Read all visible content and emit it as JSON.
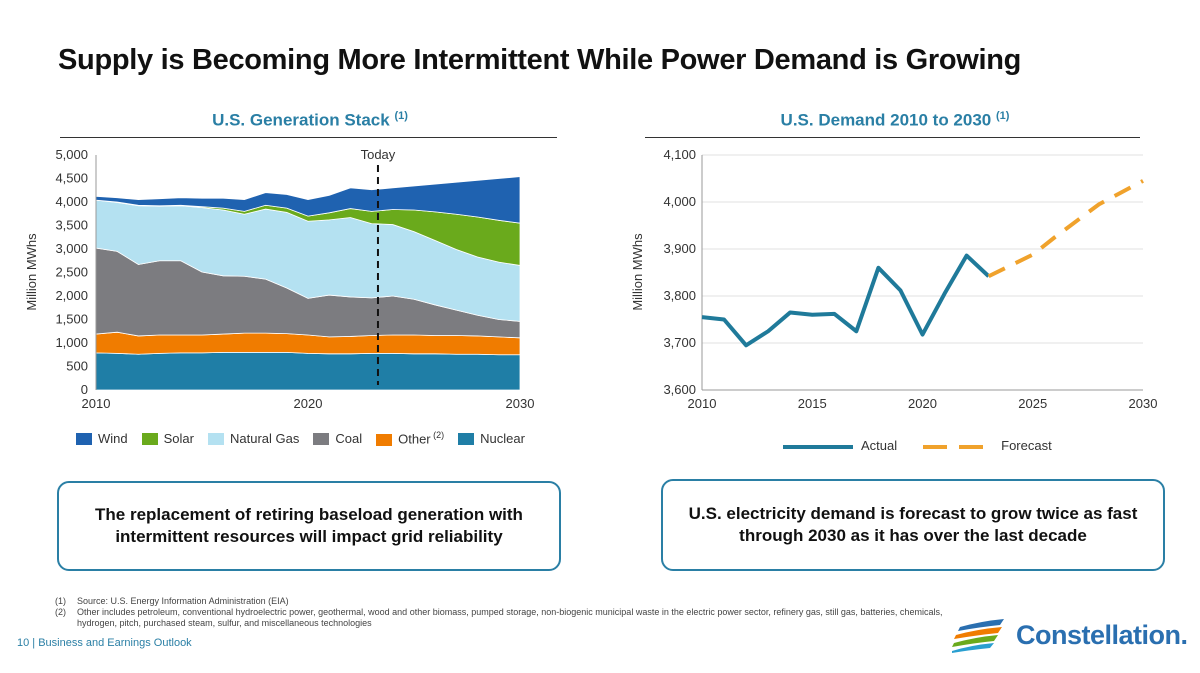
{
  "title": "Supply is Becoming More Intermittent While Power Demand is Growing",
  "chart_data": [
    {
      "type": "area",
      "stacked": true,
      "title": "U.S. Generation Stack",
      "title_note": "(1)",
      "ylabel": "Million MWhs",
      "xlabel": "",
      "x": [
        2010,
        2011,
        2012,
        2013,
        2014,
        2015,
        2016,
        2017,
        2018,
        2019,
        2020,
        2021,
        2022,
        2023,
        2024,
        2025,
        2026,
        2027,
        2028,
        2029,
        2030
      ],
      "xticks": [
        "2010",
        "2020",
        "2030"
      ],
      "yticks": [
        "0",
        "500",
        "1,000",
        "1,500",
        "2,000",
        "2,500",
        "3,000",
        "3,500",
        "4,000",
        "4,500",
        "5,000"
      ],
      "ylim": [
        0,
        5000
      ],
      "grid": false,
      "legend": "bottom",
      "annotation": {
        "label": "Today",
        "x": 2023.3
      },
      "series": [
        {
          "name": "Nuclear",
          "color": "#1f7ea6",
          "values": [
            790,
            780,
            760,
            780,
            790,
            790,
            800,
            800,
            800,
            800,
            780,
            770,
            770,
            780,
            780,
            770,
            770,
            760,
            760,
            750,
            750
          ]
        },
        {
          "name": "Other",
          "note": "(2)",
          "color": "#f07c00",
          "values": [
            400,
            450,
            390,
            390,
            380,
            380,
            390,
            410,
            410,
            400,
            390,
            360,
            370,
            380,
            390,
            400,
            390,
            400,
            390,
            380,
            360
          ]
        },
        {
          "name": "Coal",
          "color": "#7c7c80",
          "values": [
            1830,
            1720,
            1520,
            1580,
            1580,
            1340,
            1240,
            1210,
            1150,
            970,
            780,
            890,
            840,
            800,
            830,
            760,
            650,
            540,
            440,
            370,
            350
          ]
        },
        {
          "name": "Natural Gas",
          "color": "#b4e1f1",
          "values": [
            1020,
            1040,
            1250,
            1160,
            1170,
            1370,
            1400,
            1320,
            1490,
            1610,
            1640,
            1600,
            1690,
            1580,
            1520,
            1440,
            1370,
            1290,
            1240,
            1220,
            1190
          ]
        },
        {
          "name": "Solar",
          "color": "#6aaa1c",
          "values": [
            0,
            10,
            10,
            10,
            10,
            20,
            40,
            60,
            80,
            90,
            110,
            150,
            190,
            260,
            320,
            460,
            610,
            750,
            850,
            890,
            900
          ]
        },
        {
          "name": "Wind",
          "color": "#1f62b0",
          "values": [
            80,
            90,
            120,
            150,
            160,
            180,
            210,
            250,
            270,
            290,
            350,
            370,
            440,
            460,
            460,
            510,
            590,
            680,
            780,
            890,
            990
          ]
        }
      ],
      "legend_order": [
        "Wind",
        "Solar",
        "Natural Gas",
        "Coal",
        "Other",
        "Nuclear"
      ]
    },
    {
      "type": "line",
      "title": "U.S. Demand 2010 to 2030",
      "title_note": "(1)",
      "ylabel": "Million MWhs",
      "xlabel": "",
      "xlim": [
        2010,
        2030
      ],
      "ylim": [
        3600,
        4100
      ],
      "xticks": [
        "2010",
        "2015",
        "2020",
        "2025",
        "2030"
      ],
      "yticks": [
        "3,600",
        "3,700",
        "3,800",
        "3,900",
        "4,000",
        "4,100"
      ],
      "grid": true,
      "legend": "bottom",
      "series": [
        {
          "name": "Actual",
          "color": "#1f7a9a",
          "style": "solid",
          "x": [
            2010,
            2011,
            2012,
            2013,
            2014,
            2015,
            2016,
            2017,
            2018,
            2019,
            2020,
            2021,
            2022,
            2023
          ],
          "values": [
            3755,
            3750,
            3695,
            3725,
            3765,
            3760,
            3762,
            3725,
            3860,
            3812,
            3718,
            3805,
            3886,
            3842
          ]
        },
        {
          "name": "Forecast",
          "color": "#f0a22c",
          "style": "dashed",
          "x": [
            2023,
            2024,
            2025,
            2026,
            2027,
            2028,
            2029,
            2030
          ],
          "values": [
            3842,
            3865,
            3888,
            3925,
            3960,
            3995,
            4020,
            4045
          ]
        }
      ]
    }
  ],
  "callouts": {
    "left": "The replacement of retiring baseload generation with intermittent resources will impact grid reliability",
    "right": "U.S. electricity demand is forecast to grow twice as fast through 2030 as it has over the last decade"
  },
  "footnotes": [
    {
      "num": "(1)",
      "text": "Source: U.S. Energy Information Administration (EIA)"
    },
    {
      "num": "(2)",
      "text": "Other includes petroleum, conventional hydroelectric power, geothermal, wood and other biomass, pumped storage, non-biogenic municipal waste in the electric power sector, refinery gas, still gas, batteries, chemicals, hydrogen, pitch, purchased steam, sulfur, and miscellaneous technologies"
    }
  ],
  "footer": "10  | Business and Earnings Outlook",
  "logo": "Constellation."
}
